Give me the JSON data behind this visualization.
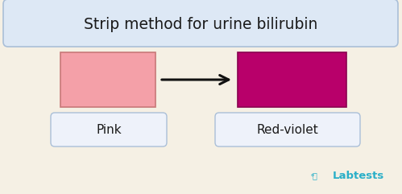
{
  "background_color": "#f5f0e4",
  "title": "Strip method for urine bilirubin",
  "title_box_color": "#dde8f5",
  "title_box_border": "#aabfd8",
  "title_fontsize": 13.5,
  "pink_fill": "#f4a0a8",
  "pink_border": "#c87878",
  "red_violet_fill": "#b8006a",
  "red_violet_border": "#8a0050",
  "label_box_color": "#eef2fa",
  "label_box_border": "#aabfd8",
  "label_pink": "Pink",
  "label_redviolet": "Red-violet",
  "label_fontsize": 11,
  "arrow_color": "#111111",
  "labtests_color": "#2aafc8",
  "labtests_text": "Labtests"
}
